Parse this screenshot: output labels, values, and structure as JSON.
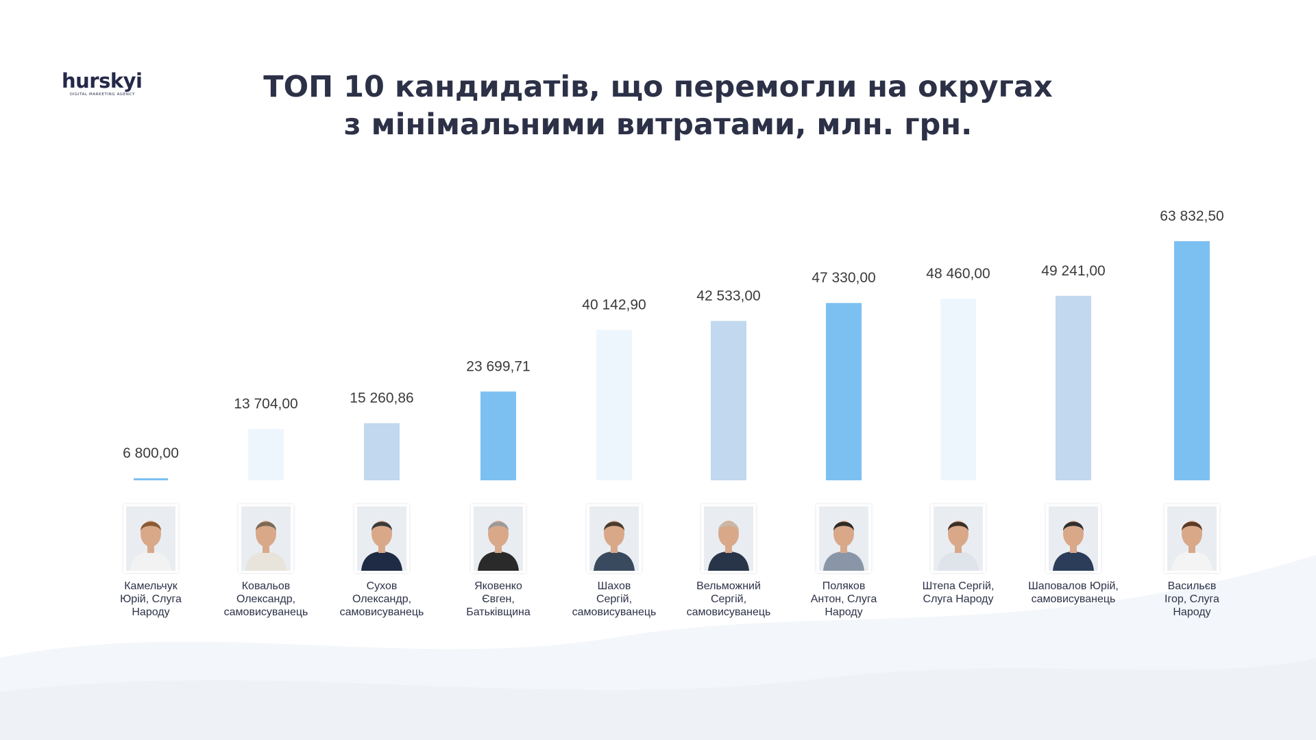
{
  "logo": {
    "word": "hurskyi",
    "tagline": "DIGITAL MARKETING AGENCY"
  },
  "title": {
    "line1": "ТОП 10 кандидатів, що перемогли на округах",
    "line2": "з мінімальними  витратами, млн. грн."
  },
  "chart_data": {
    "type": "bar",
    "title": "ТОП 10 кандидатів, що перемогли на округах з мінімальними  витратами, млн. грн.",
    "categories": [
      "Камельчук Юрій, Слуга Народу",
      "Ковальов Олександр, самовисуванець",
      "Сухов Олександр, самовисуванець",
      "Яковенко Євген, Батьківщина",
      "Шахов Сергій, самовисуванець",
      "Вельможний Сергій, самовисуванець",
      "Поляков Антон, Слуга Народу",
      "Штепа Сергій, Слуга Народу",
      "Шаповалов Юрій, самовисуванець",
      "Васильєв Ігор, Слуга Народу"
    ],
    "values": [
      6800.0,
      13704.0,
      15260.86,
      23699.71,
      40142.9,
      42533.0,
      47330.0,
      48460.0,
      49241.0,
      63832.5
    ],
    "value_labels": [
      "6 800,00",
      "13 704,00",
      "15 260,86",
      "23 699,71",
      "40 142,90",
      "42 533,00",
      "47 330,00",
      "48 460,00",
      "49 241,00",
      "63 832,50"
    ],
    "bar_colors": [
      "#7cc0f2",
      "#eef6fd",
      "#c1d8ee",
      "#7cc0f2",
      "#eef6fd",
      "#c1d8ee",
      "#7cc0f2",
      "#eef6fd",
      "#c1d8ee",
      "#7cc0f2"
    ],
    "grid": false,
    "legend": "none"
  },
  "candidates": [
    {
      "name": "Камельчук\nЮрій, Слуга\nНароду",
      "photo_icon": "portrait-icon"
    },
    {
      "name": "Ковальов\nОлександр,\nсамовисуванець",
      "photo_icon": "portrait-icon"
    },
    {
      "name": "Сухов\nОлександр,\nсамовисуванець",
      "photo_icon": "portrait-icon"
    },
    {
      "name": "Яковенко\nЄвген,\nБатьківщина",
      "photo_icon": "portrait-icon"
    },
    {
      "name": "Шахов\nСергій,\nсамовисуванець",
      "photo_icon": "portrait-icon"
    },
    {
      "name": "Вельможний\nСергій,\nсамовисуванець",
      "photo_icon": "portrait-icon"
    },
    {
      "name": "Поляков\nАнтон, Слуга\nНароду",
      "photo_icon": "portrait-icon"
    },
    {
      "name": "Штепа Сергій,\nСлуга Народу",
      "photo_icon": "portrait-icon"
    },
    {
      "name": "Шаповалов Юрій,\nсамовисуванець",
      "photo_icon": "portrait-icon"
    },
    {
      "name": "Васильєв\nІгор, Слуга\nНароду",
      "photo_icon": "portrait-icon"
    }
  ]
}
